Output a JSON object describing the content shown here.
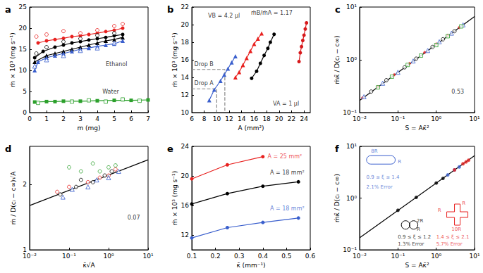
{
  "chart_data": [
    {
      "type": "line",
      "title": "a",
      "xlabel": "m (mg)",
      "ylabel": "ṁ × 10³ (mg s⁻¹)",
      "xlim": [
        0,
        7
      ],
      "xticks": [
        0,
        1,
        2,
        3,
        4,
        5,
        6,
        7
      ],
      "ylim": [
        0,
        25
      ],
      "yticks": [
        0,
        5,
        10,
        15,
        20,
        25
      ],
      "grid": false,
      "series": [
        {
          "type": "line",
          "color": "#e8211f",
          "marker": "circle",
          "line_style": "solid",
          "x": [
            0.5,
            1,
            1.5,
            2,
            2.5,
            3,
            3.5,
            4,
            4.5,
            5,
            5.5
          ],
          "values": [
            16.5,
            17,
            17.3,
            17.6,
            18,
            18.2,
            18.5,
            18.8,
            19.2,
            19.5,
            20
          ]
        },
        {
          "type": "scatter",
          "color": "#e8211f",
          "marker": "circle-open",
          "x": [
            0.4,
            1,
            2,
            3,
            4,
            5,
            5.5
          ],
          "values": [
            18,
            18.5,
            19.3,
            18.8,
            19.5,
            20.5,
            21
          ]
        },
        {
          "type": "line",
          "color": "#000000",
          "marker": "circle",
          "line_style": "solid",
          "x": [
            0.3,
            0.8,
            1.5,
            2,
            2.5,
            3,
            3.5,
            4,
            4.5,
            5,
            5.5
          ],
          "values": [
            13,
            14.5,
            15.5,
            16,
            16.5,
            16.8,
            17.2,
            17.5,
            17.8,
            18.2,
            18.5
          ]
        },
        {
          "type": "scatter",
          "color": "#000000",
          "marker": "circle-open",
          "x": [
            0.4,
            1,
            2,
            3,
            4,
            5
          ],
          "values": [
            14,
            15.5,
            16.8,
            17.5,
            18.3,
            18.8
          ]
        },
        {
          "type": "line",
          "color": "#000000",
          "marker": "triangle",
          "line_style": "solid",
          "x": [
            0.3,
            1,
            1.5,
            2,
            2.5,
            3,
            3.5,
            4,
            4.5,
            5,
            5.5
          ],
          "values": [
            12,
            13.5,
            14,
            14.5,
            15,
            15.5,
            16,
            16.5,
            17,
            17.3,
            17.8
          ]
        },
        {
          "type": "line",
          "color": "#3a5fcd",
          "marker": "triangle",
          "line_style": "solid",
          "x": [
            0.3,
            0.5,
            1,
            1.5,
            2,
            2.5,
            3,
            3.5,
            4,
            4.5,
            5,
            5.5
          ],
          "values": [
            10,
            12,
            13,
            13.5,
            14,
            14.5,
            15,
            15.3,
            15.7,
            16,
            16.3,
            17
          ]
        },
        {
          "type": "scatter",
          "color": "#3a5fcd",
          "marker": "triangle-open",
          "x": [
            0.3,
            1,
            2,
            3,
            4,
            5
          ],
          "values": [
            11,
            12.5,
            13.5,
            14.7,
            15.3,
            16.5
          ]
        },
        {
          "type": "line",
          "color": "#2ca02c",
          "marker": "square",
          "line_style": "solid",
          "x": [
            0.3,
            1,
            1.5,
            2,
            3,
            4,
            5,
            6,
            7
          ],
          "values": [
            2.5,
            2.6,
            2.6,
            2.7,
            2.7,
            2.8,
            2.9,
            2.9,
            3.0
          ]
        },
        {
          "type": "scatter",
          "color": "#2ca02c",
          "marker": "square-open",
          "x": [
            0.5,
            2.5,
            3.5,
            4.5,
            5.5,
            6.5
          ],
          "values": [
            2.3,
            2.6,
            2.9,
            2.6,
            3.1,
            2.8
          ]
        }
      ],
      "annotations": [
        {
          "text": "Ethanol",
          "x": 4.5,
          "y": 11.5,
          "color": "#000000"
        },
        {
          "text": "Water",
          "x": 4.3,
          "y": 5,
          "color": "#000000"
        }
      ]
    },
    {
      "type": "line",
      "title": "b",
      "xlabel": "A (mm²)",
      "ylabel": "ṁ × 10³ (mg s⁻¹)",
      "xlim": [
        6,
        25
      ],
      "xticks": [
        6,
        8,
        10,
        12,
        14,
        16,
        18,
        20,
        22,
        24
      ],
      "ylim": [
        10,
        22
      ],
      "yticks": [
        10,
        12,
        14,
        16,
        18,
        20,
        22
      ],
      "grid": false,
      "series": [
        {
          "color": "#3a5fcd",
          "marker": "triangle",
          "line_style": "solid",
          "x": [
            8.8,
            9.6,
            10.6,
            11.2,
            11.8,
            12.4,
            13
          ],
          "values": [
            11.4,
            12.6,
            13.6,
            14.3,
            15,
            15.7,
            16.4
          ]
        },
        {
          "color": "#e8211f",
          "marker": "triangle",
          "line_style": "solid",
          "x": [
            13,
            13.6,
            14.2,
            14.8,
            15.4,
            16,
            16.6,
            17.2
          ],
          "values": [
            14,
            14.6,
            15.4,
            16.2,
            17,
            17.8,
            18.4,
            19
          ]
        },
        {
          "color": "#000000",
          "marker": "circle",
          "line_style": "solid",
          "x": [
            15.6,
            16.4,
            17,
            17.6,
            18.2,
            18.6,
            19.2
          ],
          "values": [
            13.9,
            14.7,
            15.6,
            16.5,
            17.3,
            18,
            18.9
          ]
        },
        {
          "color": "#d7191c",
          "marker": "circle",
          "line_style": "solid",
          "x": [
            23.2,
            23.4,
            23.6,
            23.8,
            24,
            24.2,
            24.4
          ],
          "values": [
            15.8,
            16.8,
            17.5,
            18.2,
            18.8,
            19.5,
            20.2
          ]
        },
        {
          "color": "#888888",
          "marker": "none",
          "line_style": "dashed",
          "x": [
            6,
            11.3,
            11.3
          ],
          "values": [
            14.9,
            14.9,
            10
          ]
        },
        {
          "color": "#888888",
          "marker": "none",
          "line_style": "dashed",
          "x": [
            6,
            10,
            10
          ],
          "values": [
            12.7,
            12.7,
            10
          ]
        }
      ],
      "annotations": [
        {
          "text": "VB = 4.2 μl",
          "x": 8.6,
          "y": 21,
          "color": "#000000"
        },
        {
          "text": "ṁB/ṁA = 1.17",
          "x": 15.5,
          "y": 21.3,
          "color": "#000000"
        },
        {
          "text": "Drop B",
          "x": 6.4,
          "y": 15.5,
          "color": "#000000"
        },
        {
          "text": "Drop A",
          "x": 6.4,
          "y": 13.3,
          "color": "#000000"
        },
        {
          "text": "VA = 1 μl",
          "x": 19,
          "y": 11,
          "color": "#000000"
        }
      ]
    },
    {
      "type": "scatter",
      "title": "c",
      "xlabel": "S = Aκ̄²",
      "ylabel": "ṁκ̄ / D(cᵢ − c∞)",
      "log": true,
      "xlim": [
        0.01,
        10
      ],
      "xticks": [
        {
          "value": 0.01,
          "label": "10⁻²"
        },
        {
          "value": 0.1,
          "label": "10⁻¹"
        },
        {
          "value": 1,
          "label": "10⁰"
        },
        {
          "value": 10,
          "label": "10¹"
        }
      ],
      "ylim": [
        0.1,
        10
      ],
      "yticks": [
        {
          "value": 0.1,
          "label": "10⁻¹"
        },
        {
          "value": 1,
          "label": "10⁰"
        },
        {
          "value": 10,
          "label": "10¹"
        }
      ],
      "grid": false,
      "series": [
        {
          "type": "line",
          "color": "#000000",
          "marker": "none",
          "line_style": "solid",
          "x": [
            0.01,
            10
          ],
          "values": [
            0.17,
            6.6
          ]
        },
        {
          "color": "#e8211f",
          "marker": "diamond",
          "x": [
            0.012,
            0.03,
            0.08,
            0.2,
            0.5,
            1,
            2,
            4
          ],
          "values": [
            0.19,
            0.31,
            0.52,
            0.85,
            1.38,
            2.0,
            2.9,
            4.1
          ]
        },
        {
          "color": "#000000",
          "marker": "circle-open",
          "x": [
            0.02,
            0.05,
            0.15,
            0.3,
            0.8,
            1.5,
            3
          ],
          "values": [
            0.25,
            0.41,
            0.72,
            1.05,
            1.75,
            2.45,
            3.5
          ]
        },
        {
          "color": "#3a5fcd",
          "marker": "triangle-open",
          "x": [
            0.013,
            0.04,
            0.1,
            0.25,
            0.6,
            1.2,
            2.5,
            5
          ],
          "values": [
            0.2,
            0.36,
            0.58,
            0.95,
            1.5,
            2.2,
            3.2,
            4.6
          ]
        },
        {
          "color": "#2ca02c",
          "marker": "square-open",
          "x": [
            0.03,
            0.07,
            0.18,
            0.4,
            1,
            2,
            4.5
          ],
          "values": [
            0.3,
            0.48,
            0.8,
            1.2,
            1.9,
            2.8,
            4.3
          ]
        }
      ],
      "annotations": [
        {
          "text": "0.53",
          "x": 2.5,
          "y": 0.25,
          "color": "#000000"
        }
      ]
    },
    {
      "type": "scatter",
      "title": "d",
      "xlabel": "κ̄√A",
      "ylabel": "ṁ / D(cᵢ − c∞)√A",
      "log": true,
      "xlim": [
        0.01,
        10
      ],
      "xticks": [
        {
          "value": 0.01,
          "label": "10⁻²"
        },
        {
          "value": 0.1,
          "label": "10⁻¹"
        },
        {
          "value": 1,
          "label": "10⁰"
        },
        {
          "value": 10,
          "label": "10¹"
        }
      ],
      "ylim": [
        1,
        3
      ],
      "yticks": [
        1,
        2
      ],
      "grid": false,
      "series": [
        {
          "type": "line",
          "color": "#000000",
          "marker": "none",
          "line_style": "solid",
          "x": [
            0.01,
            10
          ],
          "values": [
            1.6,
            2.6
          ]
        },
        {
          "color": "#e8211f",
          "marker": "circle-open",
          "x": [
            0.05,
            0.1,
            0.3,
            0.6,
            1,
            1.5
          ],
          "values": [
            1.85,
            1.95,
            2.05,
            2.15,
            2.2,
            2.35
          ]
        },
        {
          "color": "#000000",
          "marker": "circle-open",
          "x": [
            0.06,
            0.15,
            0.2,
            0.4,
            0.8,
            1.2
          ],
          "values": [
            1.8,
            1.95,
            2.1,
            2.05,
            2.2,
            2.3
          ]
        },
        {
          "color": "#3a5fcd",
          "marker": "triangle-open",
          "x": [
            0.07,
            0.12,
            0.3,
            0.5,
            1,
            1.8
          ],
          "values": [
            1.75,
            1.9,
            1.95,
            2.1,
            2.15,
            2.3
          ]
        },
        {
          "color": "#2ca02c",
          "marker": "circle-open",
          "x": [
            0.1,
            0.2,
            0.4,
            0.6,
            1,
            1.5
          ],
          "values": [
            2.4,
            2.3,
            2.5,
            2.3,
            2.4,
            2.45
          ]
        }
      ],
      "annotations": [
        {
          "text": "0.07",
          "x": 3,
          "y": 1.4,
          "color": "#000000"
        }
      ]
    },
    {
      "type": "line",
      "title": "e",
      "xlabel": "κ̄ (mm⁻¹)",
      "ylabel": "ṁ × 10³ (mg s⁻¹)",
      "xlim": [
        0.1,
        0.6
      ],
      "xticks": [
        0.1,
        0.2,
        0.3,
        0.4,
        0.5,
        0.6
      ],
      "ylim": [
        10,
        24
      ],
      "yticks": [
        12,
        16,
        20,
        24
      ],
      "grid": false,
      "series": [
        {
          "color": "#e8211f",
          "marker": "circle",
          "line_style": "solid",
          "x": [
            0.1,
            0.25,
            0.4
          ],
          "values": [
            19.6,
            21.5,
            22.6
          ]
        },
        {
          "color": "#000000",
          "marker": "circle",
          "line_style": "solid",
          "x": [
            0.1,
            0.25,
            0.4,
            0.55
          ],
          "values": [
            16.2,
            17.6,
            18.6,
            19.2
          ]
        },
        {
          "color": "#3a5fcd",
          "marker": "circle",
          "line_style": "solid",
          "x": [
            0.1,
            0.25,
            0.4,
            0.55
          ],
          "values": [
            11.6,
            13,
            13.7,
            14.3
          ]
        }
      ],
      "annotations": [
        {
          "text": "A = 25 mm²",
          "x": 0.42,
          "y": 22.6,
          "color": "#e8211f"
        },
        {
          "text": "A = 18 mm²",
          "x": 0.43,
          "y": 20.4,
          "color": "#000000"
        },
        {
          "text": "A = 18 mm²",
          "x": 0.43,
          "y": 15.6,
          "color": "#3a5fcd"
        }
      ]
    },
    {
      "type": "scatter",
      "title": "f",
      "xlabel": "S = Aκ̄²",
      "ylabel": "ṁκ̄ / D(cᵢ − c∞)",
      "log": true,
      "xlim": [
        0.01,
        10
      ],
      "xticks": [
        {
          "value": 0.01,
          "label": "10⁻²"
        },
        {
          "value": 0.1,
          "label": "10⁻¹"
        },
        {
          "value": 1,
          "label": "10⁰"
        },
        {
          "value": 10,
          "label": "10¹"
        }
      ],
      "ylim": [
        0.1,
        10
      ],
      "yticks": [
        {
          "value": 0.1,
          "label": "10⁻¹"
        },
        {
          "value": 1,
          "label": "10⁰"
        },
        {
          "value": 10,
          "label": "10¹"
        }
      ],
      "grid": false,
      "series": [
        {
          "type": "line",
          "color": "#000000",
          "marker": "none",
          "line_style": "solid",
          "x": [
            0.01,
            10
          ],
          "values": [
            0.17,
            6.6
          ]
        },
        {
          "color": "#000000",
          "marker": "circle",
          "x": [
            0.1,
            0.3,
            1,
            1.5
          ],
          "values": [
            0.58,
            1.03,
            1.95,
            2.4
          ]
        },
        {
          "color": "#3a5fcd",
          "marker": "circle",
          "x": [
            2,
            3,
            4
          ],
          "values": [
            2.8,
            3.5,
            4.0
          ]
        },
        {
          "color": "#e8211f",
          "marker": "circle",
          "x": [
            3,
            5,
            6,
            7
          ],
          "values": [
            3.5,
            4.6,
            5.0,
            5.4
          ]
        }
      ],
      "annotations": [
        {
          "text": "8R",
          "x": 0.02,
          "y": 8,
          "color": "#3a5fcd"
        },
        {
          "text": "R",
          "x": 0.1,
          "y": 5,
          "color": "#3a5fcd"
        },
        {
          "text": "0.9 ≤ ξ ≤ 1.4",
          "x": 0.015,
          "y": 2.5,
          "color": "#3a5fcd"
        },
        {
          "text": "2.1% Error",
          "x": 0.015,
          "y": 1.6,
          "color": "#3a5fcd"
        },
        {
          "text": "2R",
          "x": 0.31,
          "y": 0.36,
          "color": "#000000"
        },
        {
          "text": "R",
          "x": 0.31,
          "y": 0.25,
          "color": "#000000"
        },
        {
          "text": "0.9 ≤ ξ ≤ 1.2",
          "x": 0.1,
          "y": 0.177,
          "color": "#000000"
        },
        {
          "text": "1.3% Error",
          "x": 0.1,
          "y": 0.129,
          "color": "#000000"
        },
        {
          "text": "R",
          "x": 4.7,
          "y": 0.79,
          "color": "#e8211f"
        },
        {
          "text": "R",
          "x": 1.09,
          "y": 0.57,
          "color": "#e8211f"
        },
        {
          "text": "10R",
          "x": 2.5,
          "y": 0.25,
          "color": "#e8211f"
        },
        {
          "text": "1.4 ≤ ξ ≤ 2.1",
          "x": 1.0,
          "y": 0.177,
          "color": "#e8211f"
        },
        {
          "text": "5.7% Error",
          "x": 1.0,
          "y": 0.129,
          "color": "#e8211f"
        }
      ]
    }
  ]
}
